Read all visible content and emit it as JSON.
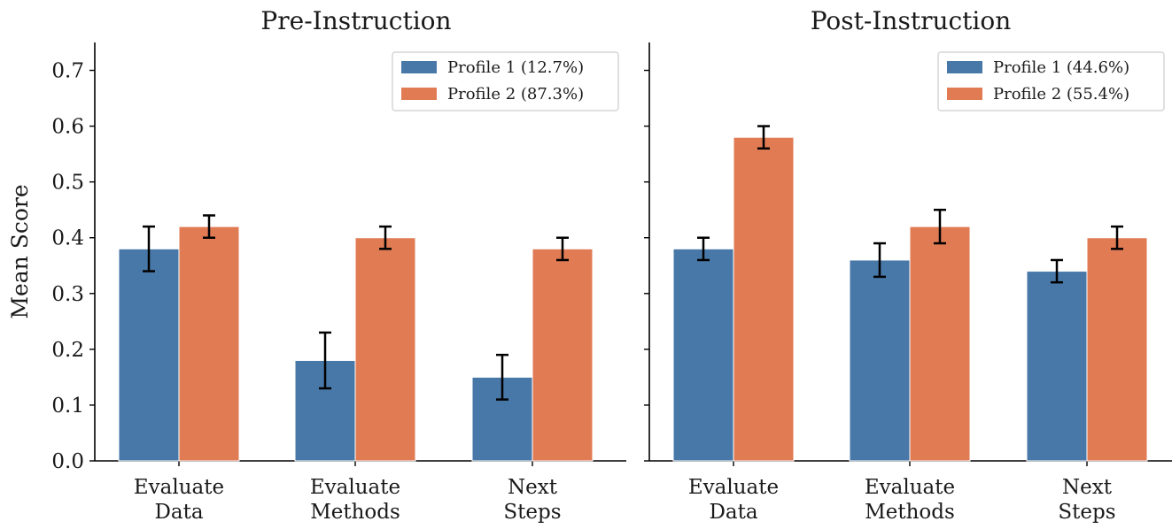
{
  "chart_data": [
    {
      "type": "bar",
      "title": "Pre-Instruction",
      "ylabel": "Mean Score",
      "xlabel": "",
      "ylim": [
        0,
        0.75
      ],
      "yticks": [
        "0.0",
        "0.1",
        "0.2",
        "0.3",
        "0.4",
        "0.5",
        "0.6",
        "0.7"
      ],
      "categories": [
        [
          "Evaluate",
          "Data"
        ],
        [
          "Evaluate",
          "Methods"
        ],
        [
          "Next",
          "Steps"
        ]
      ],
      "series": [
        {
          "name": "Profile 1 (12.7%)",
          "color": "#4878a8",
          "values": [
            0.38,
            0.18,
            0.15
          ],
          "errors": [
            0.04,
            0.05,
            0.04
          ]
        },
        {
          "name": "Profile 2 (87.3%)",
          "color": "#e07b54",
          "values": [
            0.42,
            0.4,
            0.38
          ],
          "errors": [
            0.02,
            0.02,
            0.02
          ]
        }
      ],
      "legend": "top-right",
      "grid": false
    },
    {
      "type": "bar",
      "title": "Post-Instruction",
      "ylabel": "",
      "xlabel": "",
      "ylim": [
        0,
        0.75
      ],
      "yticks": [
        "",
        "",
        "",
        "",
        "",
        "",
        "",
        ""
      ],
      "categories": [
        [
          "Evaluate",
          "Data"
        ],
        [
          "Evaluate",
          "Methods"
        ],
        [
          "Next",
          "Steps"
        ]
      ],
      "series": [
        {
          "name": "Profile 1 (44.6%)",
          "color": "#4878a8",
          "values": [
            0.38,
            0.36,
            0.34
          ],
          "errors": [
            0.02,
            0.03,
            0.02
          ]
        },
        {
          "name": "Profile 2 (55.4%)",
          "color": "#e07b54",
          "values": [
            0.58,
            0.42,
            0.4
          ],
          "errors": [
            0.02,
            0.03,
            0.02
          ]
        }
      ],
      "legend": "top-right",
      "grid": false
    }
  ]
}
